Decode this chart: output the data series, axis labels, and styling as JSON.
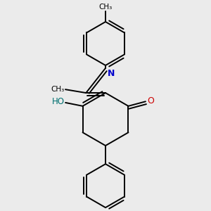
{
  "bg_color": "#ebebeb",
  "bond_color": "#000000",
  "n_color": "#0000cc",
  "o_color": "#cc0000",
  "ho_color": "#007070",
  "lw": 1.4,
  "dbo": 0.012,
  "figsize": [
    3.0,
    3.0
  ],
  "dpi": 100,
  "xlim": [
    0.15,
    0.85
  ],
  "ylim": [
    0.05,
    0.97
  ]
}
